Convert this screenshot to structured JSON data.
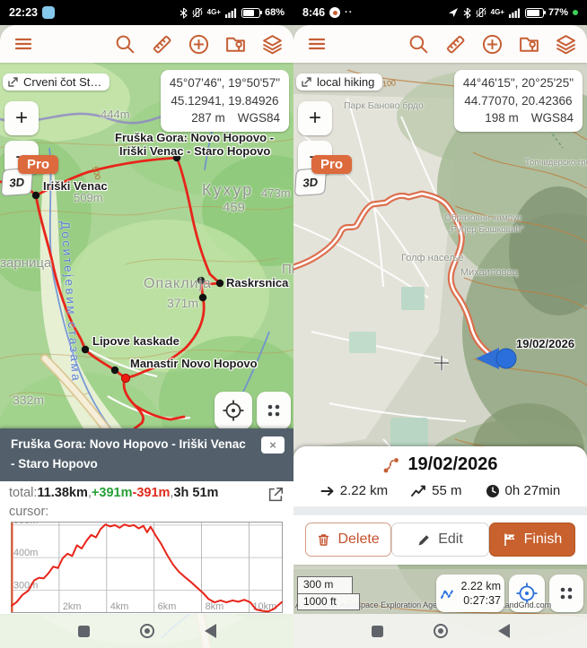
{
  "accent_color": "#c65f35",
  "ui": {
    "zoom_in": "+",
    "zoom_out": "−",
    "close": "×"
  },
  "left": {
    "status": {
      "time": "22:23",
      "network": "4G+",
      "battery": "68%"
    },
    "chip": "Crveni čot St…",
    "coords": {
      "dms": "45°07'46\", 19°50'57\"",
      "dec": "45.12941, 19.84926",
      "alt": "287 m",
      "datum": "WGS84"
    },
    "pro": "Pro",
    "threed": "3D",
    "labels": {
      "peak444": "444m",
      "track_line1": "Fruška Gora: Novo Hopovo -",
      "track_line2": "Iriški Venac - Staro Hopovo",
      "kuhur": "Кухур",
      "kuhur_elev": "459",
      "peak473": "473m",
      "iriski": "Iriški Venac",
      "peak509": "509m",
      "contour500": "500",
      "ozarnica": "озарница",
      "opaklija": "Опаклија",
      "opaklija_elev": "371m",
      "raskrsnica": "Raskrsnica",
      "pi_partial": "Пи",
      "lipove": "Lipove kaskade",
      "manastir": "Manastir Novo Hopovo",
      "peak332": "332m",
      "trail_name": "Доситејевим стазама"
    },
    "panel": {
      "title": "Fruška Gora: Novo Hopovo - Iriški Venac - Staro Hopovo",
      "total_label": "total: ",
      "distance": "11.38km",
      "sep": ", ",
      "ascent": "+391m",
      "descent": "-391m",
      "duration": "3h 51m",
      "cursor_label": "cursor:"
    },
    "chart_data": {
      "type": "line",
      "title": "",
      "xlabel": "distance",
      "ylabel": "elevation",
      "xlim": [
        0,
        11.38
      ],
      "ylim": [
        232,
        508
      ],
      "grid": true,
      "line_color": "#e8251a",
      "cursor_km": 0,
      "xticks": [
        {
          "v": 2,
          "label": "2km"
        },
        {
          "v": 4,
          "label": "4km"
        },
        {
          "v": 6,
          "label": "6km"
        },
        {
          "v": 8,
          "label": "8km"
        },
        {
          "v": 10,
          "label": "10km"
        }
      ],
      "yticks": [
        {
          "v": 300,
          "label": "300m"
        },
        {
          "v": 400,
          "label": "400m"
        },
        {
          "v": 500,
          "label": "500m"
        }
      ],
      "series": [
        {
          "name": "elevation profile",
          "x": [
            0,
            0.2,
            0.45,
            0.7,
            0.95,
            1.15,
            1.35,
            1.55,
            1.75,
            1.95,
            2.15,
            2.35,
            2.55,
            2.75,
            2.95,
            3.15,
            3.35,
            3.55,
            3.75,
            3.95,
            4.15,
            4.35,
            4.55,
            4.75,
            4.95,
            5.15,
            5.35,
            5.55,
            5.7,
            5.85,
            6.05,
            6.3,
            6.55,
            6.8,
            7.05,
            7.3,
            7.55,
            7.8,
            8.05,
            8.3,
            8.55,
            8.8,
            9.05,
            9.3,
            9.55,
            9.8,
            10.05,
            10.3,
            10.55,
            10.8,
            11.05,
            11.38
          ],
          "y": [
            252,
            262,
            285,
            298,
            330,
            338,
            336,
            352,
            372,
            368,
            398,
            412,
            405,
            438,
            428,
            452,
            470,
            462,
            488,
            502,
            496,
            500,
            492,
            502,
            497,
            500,
            490,
            498,
            478,
            495,
            470,
            442,
            408,
            378,
            356,
            340,
            325,
            308,
            292,
            272,
            262,
            268,
            262,
            268,
            264,
            270,
            262,
            240,
            236,
            234,
            242,
            263
          ]
        }
      ]
    }
  },
  "right": {
    "status": {
      "time": "8:46",
      "network": "4G+",
      "battery": "77%"
    },
    "chip": "local hiking",
    "coords": {
      "dms": "44°46'15\", 20°25'25\"",
      "dec": "44.77070, 20.42366",
      "alt": "198 m",
      "datum": "WGS84"
    },
    "pro": "Pro",
    "threed": "3D",
    "labels": {
      "contour100": "100",
      "park": "Парк Баново брдо",
      "groblje": "Топчидерско гробље",
      "kampus1": "Образовни кампус",
      "kampus2": "„Руђер Бошковић“",
      "golf": "Голф насеље",
      "mihailovac": "Михаиловац",
      "date": "19/02/2026"
    },
    "panel": {
      "date": "19/02/2026",
      "distance": "2.22 km",
      "elevation": "55 m",
      "duration": "0h 27min",
      "delete_label": "Delete",
      "edit_label": "Edit",
      "finish_label": "Finish"
    },
    "bottombar": {
      "scale_m": "300 m",
      "scale_ft": "1000 ft",
      "trip_distance": "2.22 km",
      "trip_time": "0:27:37",
      "attribution": "AXA (Japan Aerospace Exploration Agency)), Parcels (c) LandGrid.com"
    }
  }
}
